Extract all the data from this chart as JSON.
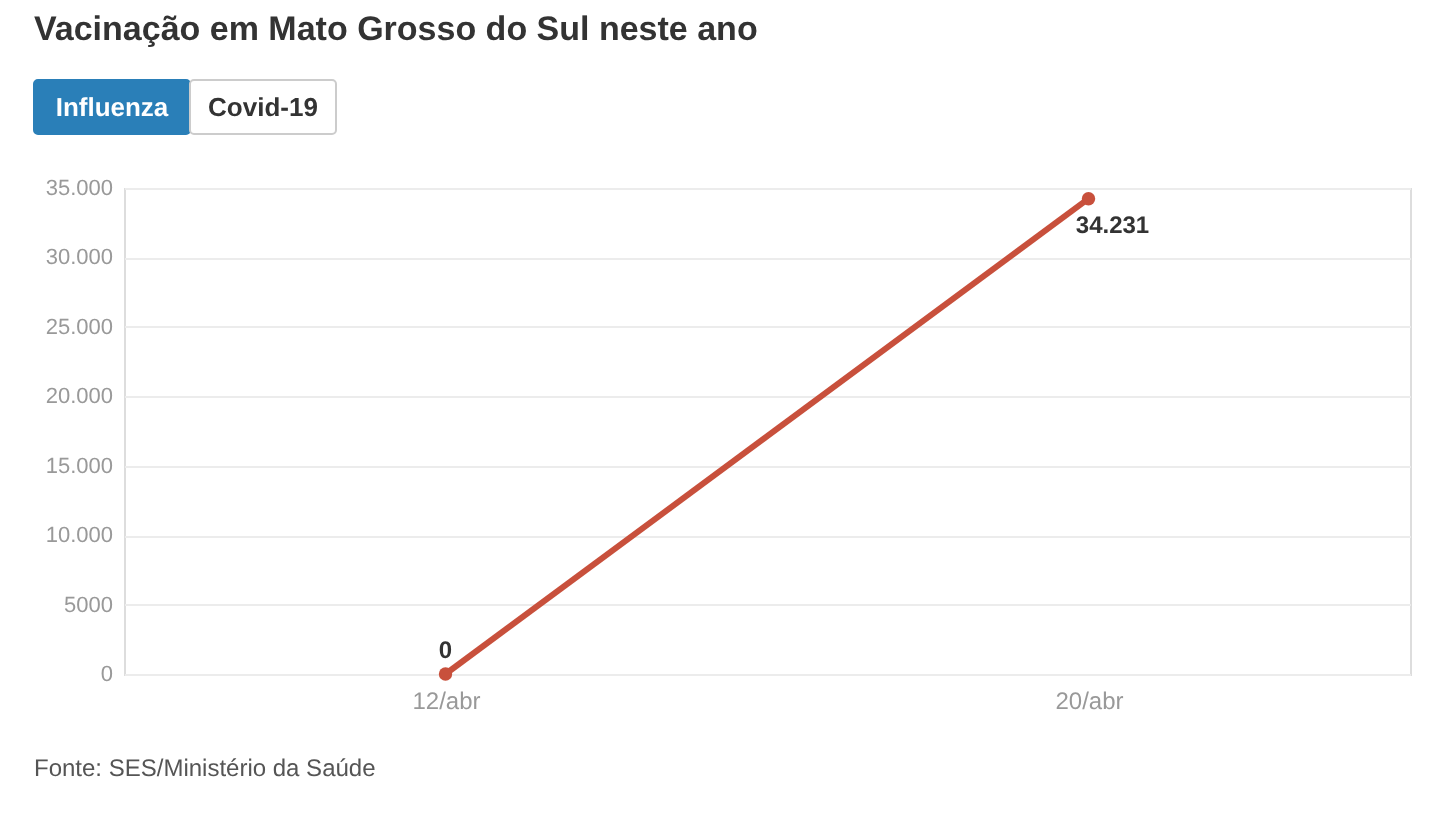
{
  "chart_data": {
    "type": "line",
    "title": "Vacinação em Mato Grosso do Sul neste ano",
    "categories": [
      "12/abr",
      "20/abr"
    ],
    "series": [
      {
        "color": "#c8503c",
        "values": [
          0,
          34231
        ],
        "value_labels": [
          "0",
          "34.231"
        ]
      }
    ],
    "ylim": [
      0,
      35000
    ],
    "yticks": [
      0,
      5000,
      {
        "value": 10000,
        "label": "10.000"
      },
      {
        "value": 15000,
        "label": "15.000"
      },
      {
        "value": 20000,
        "label": "20.000"
      },
      {
        "value": 25000,
        "label": "25.000"
      },
      {
        "value": 30000,
        "label": "30.000"
      },
      {
        "value": 35000,
        "label": "35.000"
      }
    ],
    "grid": "y",
    "marker": "circle",
    "line_style": "solid",
    "annotations": [
      "Influenza",
      "Covid-19",
      "Fonte: SES/Ministério da Saúde"
    ]
  }
}
